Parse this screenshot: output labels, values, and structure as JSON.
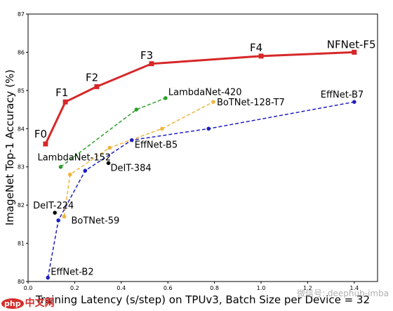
{
  "chart_data": {
    "type": "line",
    "xlabel": "Training Latency (s/step) on TPUv3, Batch Size per Device = 32",
    "ylabel": "ImageNet Top-1 Accuracy (%)",
    "xlim": [
      0.0,
      1.5
    ],
    "ylim": [
      80,
      87
    ],
    "xticks": [
      "0.0",
      "0.2",
      "0.4",
      "0.6",
      "0.8",
      "1.0",
      "1.2",
      "1.4"
    ],
    "yticks": [
      "80",
      "81",
      "82",
      "83",
      "84",
      "85",
      "86",
      "87"
    ],
    "grid": false,
    "series": [
      {
        "name": "NFNet",
        "color": "#d62728",
        "style": "solid",
        "marker": "square",
        "points": [
          {
            "x": 0.075,
            "y": 83.6,
            "label": "F0"
          },
          {
            "x": 0.16,
            "y": 84.7,
            "label": "F1"
          },
          {
            "x": 0.295,
            "y": 85.1,
            "label": "F2"
          },
          {
            "x": 0.53,
            "y": 85.7,
            "label": "F3"
          },
          {
            "x": 1.0,
            "y": 85.9,
            "label": "F4"
          },
          {
            "x": 1.4,
            "y": 86.0,
            "label": "NFNet-F5"
          }
        ]
      },
      {
        "name": "LambdaNet",
        "color": "#2ca02c",
        "style": "dashed",
        "marker": "circle",
        "points": [
          {
            "x": 0.14,
            "y": 83.0,
            "label": "LambdaNet-152"
          },
          {
            "x": 0.465,
            "y": 84.5,
            "label": ""
          },
          {
            "x": 0.59,
            "y": 84.8,
            "label": "LambdaNet-420"
          }
        ]
      },
      {
        "name": "BoTNet",
        "color": "#f0b43c",
        "style": "dashed",
        "marker": "circle",
        "points": [
          {
            "x": 0.155,
            "y": 81.7,
            "label": "BoTNet-59"
          },
          {
            "x": 0.18,
            "y": 82.8,
            "label": ""
          },
          {
            "x": 0.35,
            "y": 83.5,
            "label": ""
          },
          {
            "x": 0.575,
            "y": 84.0,
            "label": ""
          },
          {
            "x": 0.795,
            "y": 84.7,
            "label": "BoTNet-128-T7"
          }
        ]
      },
      {
        "name": "EffNet",
        "color": "#1f1fbf",
        "style": "dashed",
        "marker": "circle",
        "points": [
          {
            "x": 0.085,
            "y": 80.1,
            "label": "EffNet-B2"
          },
          {
            "x": 0.13,
            "y": 81.6,
            "label": ""
          },
          {
            "x": 0.245,
            "y": 82.9,
            "label": ""
          },
          {
            "x": 0.445,
            "y": 83.7,
            "label": "EffNet-B5"
          },
          {
            "x": 0.775,
            "y": 84.0,
            "label": ""
          },
          {
            "x": 1.4,
            "y": 84.7,
            "label": "EffNet-B7"
          }
        ]
      },
      {
        "name": "DeiT",
        "color": "#000000",
        "style": "none",
        "marker": "circle",
        "points": [
          {
            "x": 0.115,
            "y": 81.8,
            "label": "DeIT-224"
          },
          {
            "x": 0.345,
            "y": 83.1,
            "label": "DeIT-384"
          }
        ]
      }
    ]
  },
  "watermarks": {
    "right": "微信号: deephub-imba",
    "left_logo": "php",
    "left_text": "中文网"
  }
}
